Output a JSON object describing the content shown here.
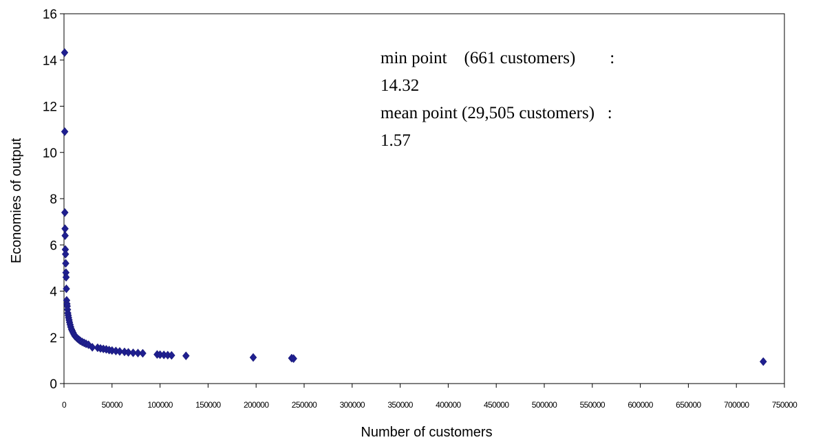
{
  "chart_data": {
    "type": "scatter",
    "xlabel": "Number of customers",
    "ylabel": "Economies of output",
    "xlim": [
      0,
      750000
    ],
    "ylim": [
      0,
      16
    ],
    "x_ticks": [
      0,
      50000,
      100000,
      150000,
      200000,
      250000,
      300000,
      350000,
      400000,
      450000,
      500000,
      550000,
      600000,
      650000,
      700000,
      750000
    ],
    "y_ticks": [
      0,
      2,
      4,
      6,
      8,
      10,
      12,
      14,
      16
    ],
    "grid": false,
    "legend": "none",
    "marker_color": "#1f1f8f",
    "series": [
      {
        "points": [
          [
            661,
            14.32
          ],
          [
            800,
            10.9
          ],
          [
            900,
            7.4
          ],
          [
            1100,
            6.7
          ],
          [
            1200,
            6.4
          ],
          [
            1400,
            5.8
          ],
          [
            1600,
            5.6
          ],
          [
            1800,
            5.2
          ],
          [
            2000,
            4.8
          ],
          [
            2200,
            4.6
          ],
          [
            2500,
            4.1
          ],
          [
            2800,
            3.6
          ],
          [
            3100,
            3.45
          ],
          [
            3400,
            3.35
          ],
          [
            3700,
            3.2
          ],
          [
            4000,
            3.05
          ],
          [
            4400,
            2.95
          ],
          [
            4800,
            2.85
          ],
          [
            5300,
            2.75
          ],
          [
            5800,
            2.65
          ],
          [
            6400,
            2.55
          ],
          [
            7000,
            2.45
          ],
          [
            7800,
            2.35
          ],
          [
            8600,
            2.28
          ],
          [
            9500,
            2.2
          ],
          [
            10500,
            2.12
          ],
          [
            11500,
            2.05
          ],
          [
            12800,
            2.0
          ],
          [
            14000,
            1.95
          ],
          [
            15500,
            1.9
          ],
          [
            17000,
            1.85
          ],
          [
            19000,
            1.8
          ],
          [
            21000,
            1.76
          ],
          [
            23000,
            1.72
          ],
          [
            25500,
            1.68
          ],
          [
            29505,
            1.57
          ],
          [
            35000,
            1.55
          ],
          [
            38000,
            1.52
          ],
          [
            41000,
            1.5
          ],
          [
            44000,
            1.48
          ],
          [
            47000,
            1.45
          ],
          [
            50000,
            1.43
          ],
          [
            54000,
            1.41
          ],
          [
            58000,
            1.39
          ],
          [
            63000,
            1.37
          ],
          [
            67000,
            1.35
          ],
          [
            72000,
            1.33
          ],
          [
            77000,
            1.32
          ],
          [
            82000,
            1.31
          ],
          [
            97000,
            1.26
          ],
          [
            100000,
            1.25
          ],
          [
            104000,
            1.24
          ],
          [
            108000,
            1.23
          ],
          [
            112000,
            1.22
          ],
          [
            127000,
            1.2
          ],
          [
            197000,
            1.13
          ],
          [
            237000,
            1.1
          ],
          [
            239000,
            1.08
          ],
          [
            728000,
            0.95
          ]
        ]
      }
    ],
    "annotations": [
      "min point    (661 customers)        :",
      "14.32",
      "mean point (29,505 customers)   :",
      "1.57"
    ]
  }
}
